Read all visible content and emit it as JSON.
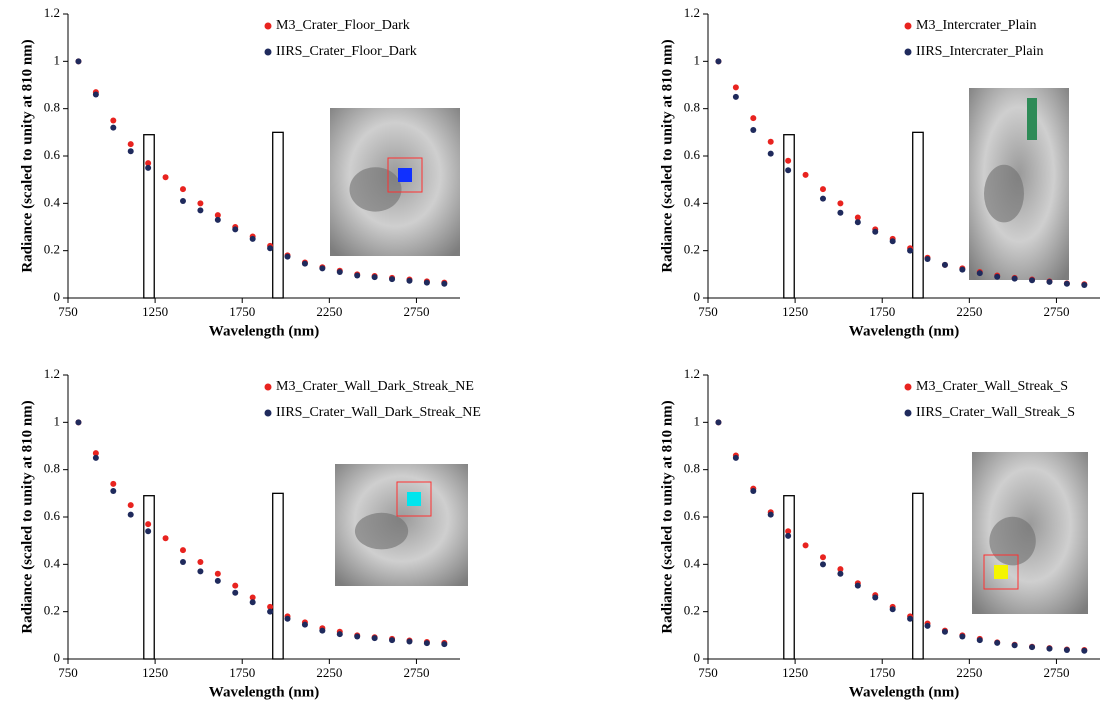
{
  "chart_data": [
    {
      "type": "scatter",
      "xlabel": "Wavelength (nm)",
      "ylabel": "Radiance (scaled to unity at 810 nm)",
      "x": [
        810,
        910,
        1010,
        1110,
        1210,
        1310,
        1410,
        1510,
        1610,
        1710,
        1810,
        1910,
        2010,
        2110,
        2210,
        2310,
        2410,
        2510,
        2610,
        2710,
        2810,
        2910
      ],
      "series": [
        {
          "name": "M3_Crater_Floor_Dark",
          "color": "#e8231f",
          "values": [
            1.0,
            0.87,
            0.75,
            0.65,
            0.57,
            0.51,
            0.46,
            0.4,
            0.35,
            0.3,
            0.26,
            0.22,
            0.18,
            0.15,
            0.13,
            0.115,
            0.1,
            0.093,
            0.085,
            0.078,
            0.07,
            0.065
          ]
        },
        {
          "name": "IIRS_Crater_Floor_Dark",
          "color": "#1f2a5c",
          "values": [
            1.0,
            0.86,
            0.72,
            0.62,
            0.55,
            null,
            0.41,
            0.37,
            0.33,
            0.29,
            0.25,
            0.21,
            0.175,
            0.145,
            0.125,
            0.11,
            0.095,
            0.088,
            0.08,
            0.073,
            0.065,
            0.06
          ]
        }
      ],
      "boxes": [
        {
          "x": [
            1185,
            1245
          ],
          "y": 0.69
        },
        {
          "x": [
            1925,
            1985
          ],
          "y": 0.7
        }
      ],
      "xlim": [
        750,
        3000
      ],
      "xticks": [
        750,
        1250,
        1750,
        2250,
        2750
      ],
      "ylim": [
        0,
        1.2
      ],
      "yticks": [
        0,
        0.2,
        0.4,
        0.6,
        0.8,
        1,
        1.2
      ]
    },
    {
      "type": "scatter",
      "xlabel": "Wavelength (nm)",
      "ylabel": "Radiance (scaled to unity at 810 nm)",
      "x": [
        810,
        910,
        1010,
        1110,
        1210,
        1310,
        1410,
        1510,
        1610,
        1710,
        1810,
        1910,
        2010,
        2110,
        2210,
        2310,
        2410,
        2510,
        2610,
        2710,
        2810,
        2910
      ],
      "series": [
        {
          "name": "M3_Intercrater_Plain",
          "color": "#e8231f",
          "values": [
            1.0,
            0.89,
            0.76,
            0.66,
            0.58,
            0.52,
            0.46,
            0.4,
            0.34,
            0.29,
            0.25,
            0.21,
            0.17,
            0.14,
            0.125,
            0.11,
            0.095,
            0.085,
            0.078,
            0.07,
            0.062,
            0.058
          ]
        },
        {
          "name": "IIRS_Intercrater_Plain",
          "color": "#1f2a5c",
          "values": [
            1.0,
            0.85,
            0.71,
            0.61,
            0.54,
            null,
            0.42,
            0.36,
            0.32,
            0.28,
            0.24,
            0.2,
            0.165,
            0.14,
            0.12,
            0.105,
            0.09,
            0.082,
            0.075,
            0.068,
            0.06,
            0.055
          ]
        }
      ],
      "boxes": [
        {
          "x": [
            1185,
            1245
          ],
          "y": 0.69
        },
        {
          "x": [
            1925,
            1985
          ],
          "y": 0.7
        }
      ],
      "xlim": [
        750,
        3000
      ],
      "xticks": [
        750,
        1250,
        1750,
        2250,
        2750
      ],
      "ylim": [
        0,
        1.2
      ],
      "yticks": [
        0,
        0.2,
        0.4,
        0.6,
        0.8,
        1,
        1.2
      ]
    },
    {
      "type": "scatter",
      "xlabel": "Wavelength (nm)",
      "ylabel": "Radiance (scaled to unity at 810 nm)",
      "x": [
        810,
        910,
        1010,
        1110,
        1210,
        1310,
        1410,
        1510,
        1610,
        1710,
        1810,
        1910,
        2010,
        2110,
        2210,
        2310,
        2410,
        2510,
        2610,
        2710,
        2810,
        2910
      ],
      "series": [
        {
          "name": "M3_Crater_Wall_Dark_Streak_NE",
          "color": "#e8231f",
          "values": [
            1.0,
            0.87,
            0.74,
            0.65,
            0.57,
            0.51,
            0.46,
            0.41,
            0.36,
            0.31,
            0.26,
            0.22,
            0.18,
            0.155,
            0.13,
            0.115,
            0.1,
            0.092,
            0.085,
            0.078,
            0.072,
            0.068
          ]
        },
        {
          "name": "IIRS_Crater_Wall_Dark_Streak_NE",
          "color": "#1f2a5c",
          "values": [
            1.0,
            0.85,
            0.71,
            0.61,
            0.54,
            null,
            0.41,
            0.37,
            0.33,
            0.28,
            0.24,
            0.2,
            0.17,
            0.145,
            0.12,
            0.105,
            0.095,
            0.088,
            0.08,
            0.074,
            0.067,
            0.063
          ]
        }
      ],
      "boxes": [
        {
          "x": [
            1185,
            1245
          ],
          "y": 0.69
        },
        {
          "x": [
            1925,
            1985
          ],
          "y": 0.7
        }
      ],
      "xlim": [
        750,
        3000
      ],
      "xticks": [
        750,
        1250,
        1750,
        2250,
        2750
      ],
      "ylim": [
        0,
        1.2
      ],
      "yticks": [
        0,
        0.2,
        0.4,
        0.6,
        0.8,
        1,
        1.2
      ]
    },
    {
      "type": "scatter",
      "xlabel": "Wavelength (nm)",
      "ylabel": "Radiance (scaled to unity at 810 nm)",
      "x": [
        810,
        910,
        1010,
        1110,
        1210,
        1310,
        1410,
        1510,
        1610,
        1710,
        1810,
        1910,
        2010,
        2110,
        2210,
        2310,
        2410,
        2510,
        2610,
        2710,
        2810,
        2910
      ],
      "series": [
        {
          "name": "M3_Crater_Wall_Streak_S",
          "color": "#e8231f",
          "values": [
            1.0,
            0.86,
            0.72,
            0.62,
            0.54,
            0.48,
            0.43,
            0.38,
            0.32,
            0.27,
            0.22,
            0.18,
            0.15,
            0.12,
            0.1,
            0.085,
            0.07,
            0.06,
            0.052,
            0.046,
            0.04,
            0.038
          ]
        },
        {
          "name": "IIRS_Crater_Wall_Streak_S",
          "color": "#1f2a5c",
          "values": [
            1.0,
            0.85,
            0.71,
            0.61,
            0.52,
            null,
            0.4,
            0.36,
            0.31,
            0.26,
            0.21,
            0.17,
            0.14,
            0.115,
            0.095,
            0.08,
            0.068,
            0.058,
            0.05,
            0.044,
            0.038,
            0.035
          ]
        }
      ],
      "boxes": [
        {
          "x": [
            1185,
            1245
          ],
          "y": 0.69
        },
        {
          "x": [
            1925,
            1985
          ],
          "y": 0.7
        }
      ],
      "xlim": [
        750,
        3000
      ],
      "xticks": [
        750,
        1250,
        1750,
        2250,
        2750
      ],
      "ylim": [
        0,
        1.2
      ],
      "yticks": [
        0,
        0.2,
        0.4,
        0.6,
        0.8,
        1,
        1.2
      ]
    }
  ]
}
